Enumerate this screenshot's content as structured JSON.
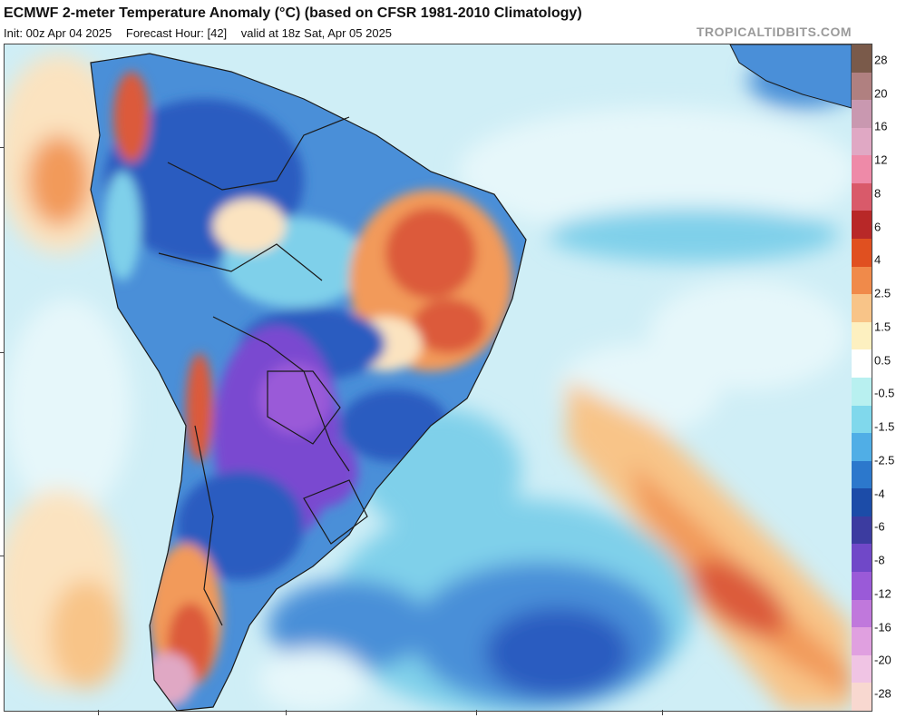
{
  "header": {
    "title": "ECMWF 2-meter Temperature Anomaly (°C) (based on CFSR 1981-2010 Climatology)",
    "init": "Init: 00z Apr 04 2025",
    "forecast_hour": "Forecast Hour: [42]",
    "valid": "valid at 18z Sat, Apr 05 2025",
    "brand": "TROPICALTIDBITS.COM"
  },
  "colorbar": {
    "labels": [
      "28",
      "20",
      "16",
      "12",
      "8",
      "6",
      "4",
      "2.5",
      "1.5",
      "0.5",
      "-0.5",
      "-1.5",
      "-2.5",
      "-4",
      "-6",
      "-8",
      "-12",
      "-16",
      "-20",
      "-28"
    ],
    "colors": [
      "#7a5a4a",
      "#b08080",
      "#c998b0",
      "#e0a8c4",
      "#ee8aa8",
      "#d95a6a",
      "#b82828",
      "#e05020",
      "#f08a4a",
      "#f8c488",
      "#fdf0c0",
      "#ffffff",
      "#b8f0f0",
      "#80d8ec",
      "#50aee6",
      "#2c78cc",
      "#1c4ca8",
      "#3c3ca0",
      "#7048c8",
      "#9a5ad8",
      "#c078dc",
      "#e0a0e0",
      "#f0c4e4",
      "#f8d8d0"
    ]
  },
  "map": {
    "colors": {
      "ocean_light": "#cfeef6",
      "ocean_pale": "#e6f7fa",
      "warm_pale": "#fbe3c0",
      "warm_orange": "#f29a5a",
      "warm_red": "#dc5a3a",
      "cool_light": "#7fd0ea",
      "cool_mid": "#4a8fd8",
      "cool_deep": "#2a5cc0",
      "cold_purple": "#7a4ad0",
      "border_line": "#1a1a1a"
    }
  }
}
